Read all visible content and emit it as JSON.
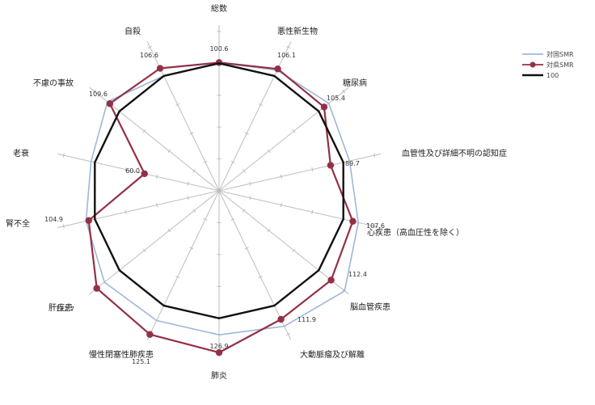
{
  "chart_data": {
    "type": "radar",
    "categories": [
      "総数",
      "悪性新生物",
      "糖尿病",
      "血管性及び詳細不明の認知症",
      "心疾患（高血圧性を除く）",
      "脳血管疾患",
      "大動脈瘤及び解離",
      "肺炎",
      "慢性閉塞性肺疾患",
      "肝疾患",
      "腎不全",
      "老衰",
      "不慮の事故",
      "自殺"
    ],
    "series": [
      {
        "name": "対国SMR",
        "color": "#9db8d9",
        "marker": "none",
        "values": [
          100.6,
          105.0,
          110.0,
          105.0,
          112.0,
          126.0,
          118.0,
          113.0,
          113.0,
          115.0,
          107.0,
          103.0,
          112.0,
          100.0
        ]
      },
      {
        "name": "対県SMR",
        "color": "#943046",
        "marker": "circle",
        "values": [
          100.6,
          106.1,
          105.4,
          89.7,
          107.6,
          112.4,
          111.9,
          126.9,
          125.1,
          122.7,
          104.9,
          60.0,
          109.6,
          106.6
        ]
      },
      {
        "name": "100",
        "color": "#111111",
        "marker": "none",
        "values": [
          100,
          100,
          100,
          100,
          100,
          100,
          100,
          100,
          100,
          100,
          100,
          100,
          100,
          100
        ]
      }
    ],
    "value_labels": [
      {
        "index": 0,
        "text": "100.6"
      },
      {
        "index": 1,
        "text": "106.1"
      },
      {
        "index": 2,
        "text": "105.4"
      },
      {
        "index": 3,
        "text": "89.7"
      },
      {
        "index": 4,
        "text": "107.6"
      },
      {
        "index": 5,
        "text": "112.4"
      },
      {
        "index": 6,
        "text": "111.9"
      },
      {
        "index": 7,
        "text": "126.9"
      },
      {
        "index": 8,
        "text": "125.1"
      },
      {
        "index": 9,
        "text": "122.7"
      },
      {
        "index": 10,
        "text": "104.9"
      },
      {
        "index": 11,
        "text": "60.0"
      },
      {
        "index": 12,
        "text": "109.6"
      },
      {
        "index": 13,
        "text": "106.6"
      }
    ],
    "rmax": 130,
    "grid_rings": [
      25,
      50,
      75,
      100,
      125
    ],
    "legend_position": "top-right"
  }
}
